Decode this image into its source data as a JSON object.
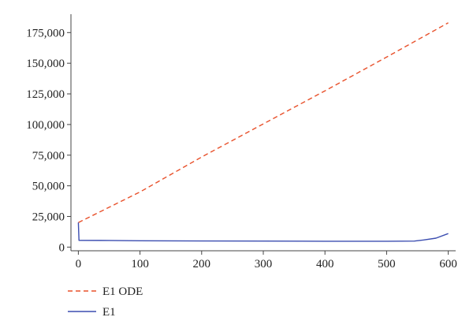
{
  "chart_data": {
    "type": "line",
    "title": "",
    "xlabel": "",
    "ylabel": "",
    "xlim": [
      -12,
      612
    ],
    "ylim": [
      -3000,
      190000
    ],
    "xticks": [
      0,
      100,
      200,
      300,
      400,
      500,
      600
    ],
    "yticks": [
      0,
      25000,
      50000,
      75000,
      100000,
      125000,
      150000,
      175000
    ],
    "xtick_labels": [
      "0",
      "100",
      "200",
      "300",
      "400",
      "500",
      "600"
    ],
    "ytick_labels": [
      "0",
      "25,000",
      "50,000",
      "75,000",
      "100,000",
      "125,000",
      "150,000",
      "175,000"
    ],
    "grid": false,
    "legend_position": "bottom-left",
    "series": [
      {
        "name": "E1 ODE",
        "color": "#e8502a",
        "style": "dashed",
        "x": [
          0,
          100,
          200,
          300,
          400,
          500,
          600
        ],
        "y": [
          20000,
          45000,
          73500,
          100500,
          127500,
          155000,
          183000
        ]
      },
      {
        "name": "E1",
        "color": "#3b4db0",
        "style": "solid",
        "x": [
          0,
          1,
          50,
          100,
          200,
          300,
          400,
          500,
          545,
          560,
          580,
          600
        ],
        "y": [
          20000,
          5500,
          5400,
          5200,
          5000,
          4900,
          4800,
          4800,
          4900,
          5800,
          7300,
          11000
        ]
      }
    ]
  }
}
